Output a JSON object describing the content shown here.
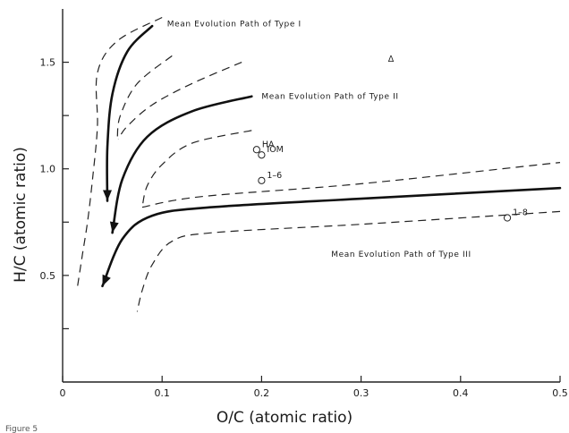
{
  "figure_caption_fragment": "Figure 5",
  "chart_data": {
    "type": "line",
    "xlabel": "O/C (atomic ratio)",
    "ylabel": "H/C (atomic ratio)",
    "xlim": [
      0,
      0.5
    ],
    "ylim": [
      0,
      1.75
    ],
    "x_ticks": [
      0,
      0.1,
      0.2,
      0.3,
      0.4,
      0.5
    ],
    "x_tick_labels": [
      "0",
      "0.1",
      "0.2",
      "0.3",
      "0.4",
      "0.5"
    ],
    "y_ticks": [
      0.5,
      1.0,
      1.5
    ],
    "y_tick_labels": [
      "0.5",
      "1.0",
      "1.5"
    ],
    "grid": false,
    "mean_paths": [
      {
        "name": "Mean Evolution Path of Type I",
        "points": [
          [
            0.09,
            1.67
          ],
          [
            0.065,
            1.55
          ],
          [
            0.05,
            1.35
          ],
          [
            0.045,
            1.1
          ],
          [
            0.045,
            0.85
          ]
        ],
        "label_at": [
          0.105,
          1.68
        ]
      },
      {
        "name": "Mean Evolution Path of Type II",
        "points": [
          [
            0.19,
            1.34
          ],
          [
            0.13,
            1.27
          ],
          [
            0.085,
            1.15
          ],
          [
            0.06,
            0.95
          ],
          [
            0.05,
            0.7
          ]
        ],
        "label_at": [
          0.2,
          1.34
        ]
      },
      {
        "name": "Mean Evolution Path of Type III",
        "points": [
          [
            0.5,
            0.91
          ],
          [
            0.3,
            0.86
          ],
          [
            0.15,
            0.82
          ],
          [
            0.09,
            0.78
          ],
          [
            0.06,
            0.67
          ],
          [
            0.04,
            0.45
          ]
        ],
        "label_at": [
          0.27,
          0.6
        ]
      }
    ],
    "band_paths": [
      [
        [
          0.1,
          1.71
        ],
        [
          0.055,
          1.6
        ],
        [
          0.035,
          1.45
        ],
        [
          0.035,
          1.2
        ],
        [
          0.03,
          0.95
        ],
        [
          0.025,
          0.75
        ],
        [
          0.02,
          0.6
        ],
        [
          0.015,
          0.45
        ]
      ],
      [
        [
          0.11,
          1.53
        ],
        [
          0.075,
          1.4
        ],
        [
          0.058,
          1.25
        ],
        [
          0.055,
          1.15
        ]
      ],
      [
        [
          0.18,
          1.5
        ],
        [
          0.13,
          1.4
        ],
        [
          0.09,
          1.3
        ],
        [
          0.065,
          1.2
        ],
        [
          0.056,
          1.14
        ]
      ],
      [
        [
          0.19,
          1.18
        ],
        [
          0.13,
          1.12
        ],
        [
          0.1,
          1.02
        ],
        [
          0.085,
          0.92
        ],
        [
          0.08,
          0.82
        ]
      ],
      [
        [
          0.08,
          0.82
        ],
        [
          0.14,
          0.87
        ],
        [
          0.3,
          0.93
        ],
        [
          0.5,
          1.03
        ]
      ],
      [
        [
          0.5,
          0.8
        ],
        [
          0.3,
          0.74
        ],
        [
          0.15,
          0.7
        ],
        [
          0.11,
          0.66
        ],
        [
          0.09,
          0.55
        ],
        [
          0.08,
          0.43
        ],
        [
          0.075,
          0.33
        ]
      ]
    ],
    "samples": [
      {
        "label": "HA",
        "x": 0.195,
        "y": 1.09
      },
      {
        "label": "IOM",
        "x": 0.2,
        "y": 1.065
      },
      {
        "label": "1–6",
        "x": 0.2,
        "y": 0.945
      },
      {
        "label": "1–8",
        "x": 0.447,
        "y": 0.77
      }
    ],
    "triangle_marker": {
      "label": "Δ",
      "x": 0.33,
      "y": 1.52
    }
  }
}
